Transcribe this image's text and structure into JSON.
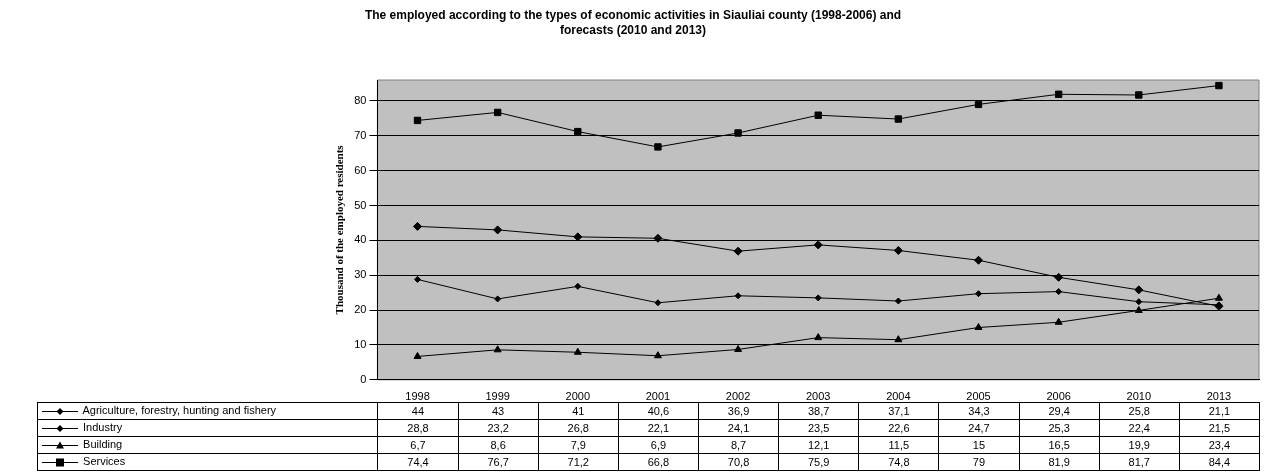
{
  "chart_data": {
    "type": "line",
    "title": "The employed according to the types of economic activities in Siauliai county (1998-2006) and forecasts (2010 and 2013)",
    "ylabel": "Thousand of the employed residents",
    "categories": [
      "1998",
      "1999",
      "2000",
      "2001",
      "2002",
      "2003",
      "2004",
      "2005",
      "2006",
      "2010",
      "2013"
    ],
    "series": [
      {
        "name": "Agriculture, forestry, hunting and fishery",
        "color": "#000000",
        "marker": "diamond",
        "values": [
          44,
          43,
          41,
          40.6,
          36.9,
          38.7,
          37.1,
          34.3,
          29.4,
          25.8,
          21.1
        ],
        "value_labels": [
          "44",
          "43",
          "41",
          "40,6",
          "36,9",
          "38,7",
          "37,1",
          "34,3",
          "29,4",
          "25,8",
          "21,1"
        ]
      },
      {
        "name": "Industry",
        "color": "#000000",
        "marker": "diamond",
        "values": [
          28.8,
          23.2,
          26.8,
          22.1,
          24.1,
          23.5,
          22.6,
          24.7,
          25.3,
          22.4,
          21.5
        ],
        "value_labels": [
          "28,8",
          "23,2",
          "26,8",
          "22,1",
          "24,1",
          "23,5",
          "22,6",
          "24,7",
          "25,3",
          "22,4",
          "21,5"
        ]
      },
      {
        "name": "Building",
        "color": "#000000",
        "marker": "triangle",
        "values": [
          6.7,
          8.6,
          7.9,
          6.9,
          8.7,
          12.1,
          11.5,
          15,
          16.5,
          19.9,
          23.4
        ],
        "value_labels": [
          "6,7",
          "8,6",
          "7,9",
          "6,9",
          "8,7",
          "12,1",
          "11,5",
          "15",
          "16,5",
          "19,9",
          "23,4"
        ]
      },
      {
        "name": "Services",
        "color": "#000000",
        "marker": "square",
        "values": [
          74.4,
          76.7,
          71.2,
          66.8,
          70.8,
          75.9,
          74.8,
          79,
          81.9,
          81.7,
          84.4
        ],
        "value_labels": [
          "74,4",
          "76,7",
          "71,2",
          "66,8",
          "70,8",
          "75,9",
          "74,8",
          "79",
          "81,9",
          "81,7",
          "84,4"
        ]
      }
    ],
    "ylim": [
      0,
      86
    ],
    "yticks": [
      0,
      10,
      20,
      30,
      40,
      50,
      60,
      70,
      80
    ],
    "grid": "y",
    "legend": "bottom"
  }
}
